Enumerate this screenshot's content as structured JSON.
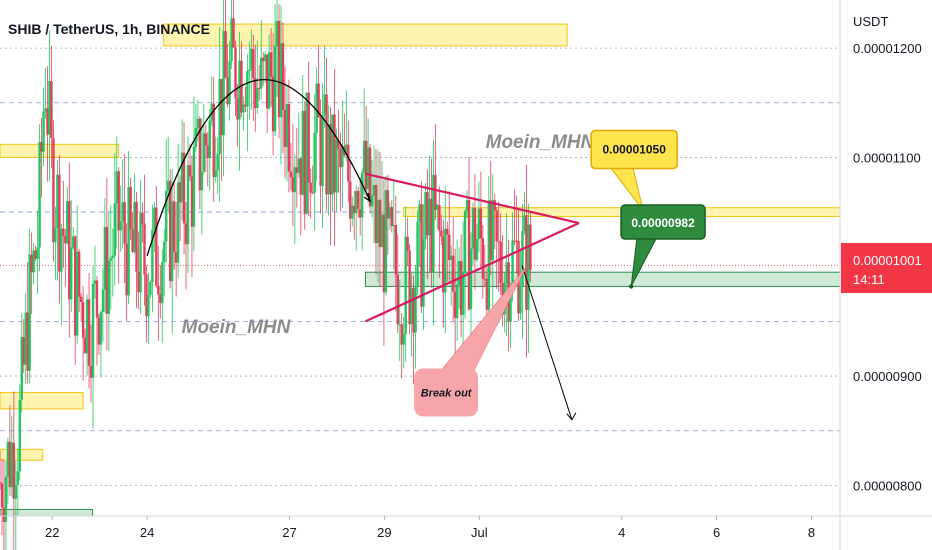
{
  "chart_title": "SHIB / TetherUS, 1h, BINANCE",
  "watermarks": [
    "Moein_MHN",
    "Moein_MHN"
  ],
  "colors": {
    "up": "#26a69a",
    "up_candle": "#22c55e",
    "down": "#e0405e",
    "triangle": "#d81b60",
    "resistance_zone": "#fff3b0",
    "support_zone": "#cfe9d6",
    "price_badge": "#f23645",
    "callout_yellow": "#ffe44d",
    "callout_green": "#2e8b3d",
    "breakout_bubble": "#f8a5a9"
  },
  "chart_data": {
    "type": "candlestick",
    "symbol": "SHIB / TetherUS",
    "timeframe": "1h",
    "exchange": "BINANCE",
    "y_axis": {
      "label": "USDT",
      "ticks": [
        "0.00001200",
        "0.00001100",
        "0.00000900",
        "0.00000800"
      ],
      "tick_values": [
        1.2e-05,
        1.1e-05,
        9e-06,
        8e-06
      ],
      "range": [
        7.72e-06,
        1.244e-05
      ]
    },
    "x_axis": {
      "ticks": [
        "22",
        "24",
        "27",
        "29",
        "Jul",
        "4",
        "6",
        "8"
      ],
      "tick_days": [
        22,
        24,
        27,
        29,
        31,
        34,
        36,
        38
      ],
      "range_days": [
        20.9,
        38.6
      ]
    },
    "current_price": {
      "value": "0.00001001",
      "countdown": "14:11"
    },
    "levels": [
      {
        "label": "0.00001050",
        "value": 1.05e-05,
        "kind": "resistance"
      },
      {
        "label": "0.00000982",
        "value": 9.82e-06,
        "kind": "support"
      }
    ],
    "annotations": [
      {
        "text": "Break out",
        "kind": "breakout"
      }
    ],
    "pattern": "rounding top and symmetrical triangle breakdown",
    "price_path": [
      [
        20.9,
        8.03e-06
      ],
      [
        21.3,
        8.5e-06
      ],
      [
        21.5,
        9.6e-06
      ],
      [
        21.7,
        1.03e-05
      ],
      [
        21.85,
        1.18e-05
      ],
      [
        22.0,
        1.08e-05
      ],
      [
        22.2,
        1.04e-05
      ],
      [
        22.5,
        9.8e-06
      ],
      [
        22.8,
        9.5e-06
      ],
      [
        23.1,
        9.9e-06
      ],
      [
        23.4,
        1.04e-05
      ],
      [
        23.7,
        1.01e-05
      ],
      [
        24.0,
        1e-05
      ],
      [
        24.3,
        1.02e-05
      ],
      [
        24.6,
        1.04e-05
      ],
      [
        24.9,
        1.07e-05
      ],
      [
        25.2,
        1.11e-05
      ],
      [
        25.5,
        1.15e-05
      ],
      [
        25.8,
        1.18e-05
      ],
      [
        26.1,
        1.19e-05
      ],
      [
        26.4,
        1.16e-05
      ],
      [
        26.7,
        1.18e-05
      ],
      [
        27.0,
        1.13e-05
      ],
      [
        27.3,
        1.1e-05
      ],
      [
        27.6,
        1.12e-05
      ],
      [
        27.9,
        1.09e-05
      ],
      [
        28.2,
        1.08e-05
      ],
      [
        28.5,
        1.09e-05
      ],
      [
        28.8,
        1.04e-05
      ],
      [
        29.1,
        1.01e-05
      ],
      [
        29.4,
        9.8e-06
      ],
      [
        29.7,
        1e-05
      ],
      [
        30.0,
        1.04e-05
      ],
      [
        30.3,
        1.01e-05
      ],
      [
        30.6,
        9.9e-06
      ],
      [
        30.9,
        1.03e-05
      ],
      [
        31.2,
        1.01e-05
      ],
      [
        31.5,
        1e-05
      ],
      [
        31.8,
        1.01e-05
      ],
      [
        32.1,
        1.001e-05
      ]
    ]
  }
}
